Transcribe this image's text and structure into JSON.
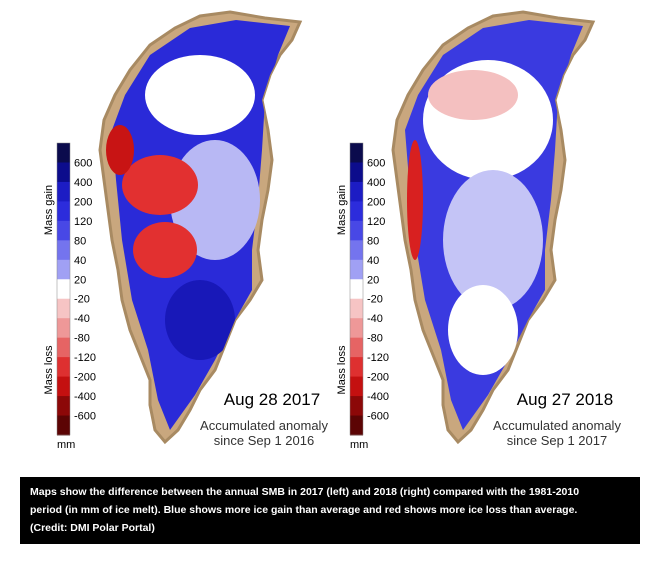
{
  "panels": [
    {
      "date": "Aug 28 2017",
      "note": [
        "Accumulated anomaly",
        "since Sep 1 2016"
      ]
    },
    {
      "date": "Aug 27 2018",
      "note": [
        "Accumulated anomaly",
        "since Sep 1 2017"
      ]
    }
  ],
  "legend": {
    "gain": "Mass gain",
    "loss": "Mass loss",
    "unit": "mm",
    "colors": [
      "#0b0b4d",
      "#0c0c8c",
      "#1c1cc4",
      "#2c2cdc",
      "#4848e6",
      "#7474ee",
      "#a0a0f4",
      "#ffffff",
      "#f6c4c4",
      "#ee9898",
      "#e66464",
      "#de3030",
      "#c41010",
      "#8c0808",
      "#5c0404"
    ],
    "labels": [
      600,
      400,
      200,
      120,
      80,
      40,
      20,
      -20,
      -40,
      -80,
      -120,
      -200,
      -400,
      -600
    ]
  },
  "caption": [
    "Maps show the difference between the annual SMB in 2017 (left) and 2018 (right) compared with the 1981-2010",
    "period (in mm of ice melt). Blue shows more ice gain than average and red shows more ice loss than average.",
    "(Credit: DMI Polar Portal)"
  ]
}
